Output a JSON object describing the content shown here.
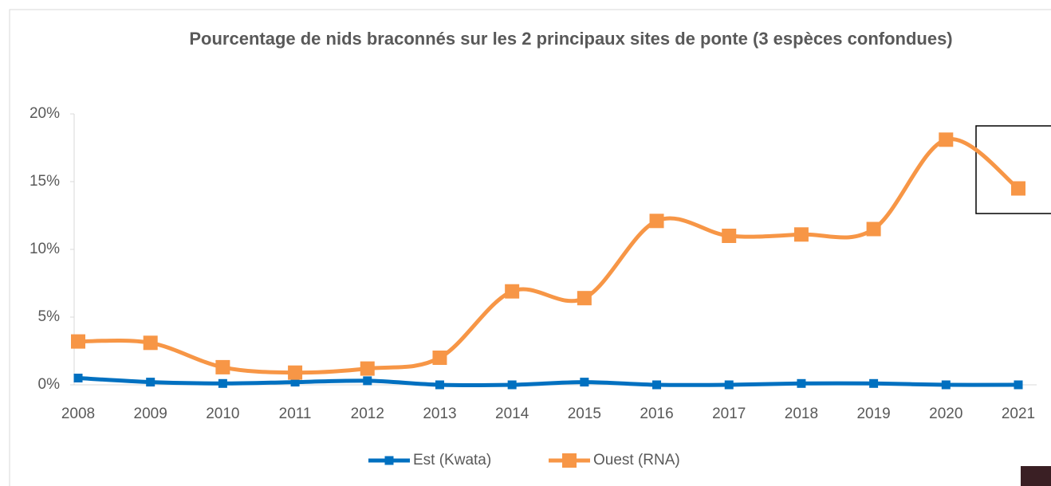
{
  "chart_data": {
    "type": "line",
    "title": "Pourcentage de nids braconnés sur les 2 principaux sites de ponte (3 espèces confondues)",
    "categories": [
      "2008",
      "2009",
      "2010",
      "2011",
      "2012",
      "2013",
      "2014",
      "2015",
      "2016",
      "2017",
      "2018",
      "2019",
      "2020",
      "2021"
    ],
    "series": [
      {
        "name": "Est (Kwata)",
        "color": "#0070c0",
        "values": [
          0.5,
          0.2,
          0.1,
          0.2,
          0.3,
          0.0,
          0.0,
          0.2,
          0.0,
          0.0,
          0.1,
          0.1,
          0.0,
          0.0
        ]
      },
      {
        "name": "Ouest (RNA)",
        "color": "#f79646",
        "values": [
          3.2,
          3.1,
          1.3,
          0.9,
          1.2,
          2.0,
          6.9,
          6.4,
          12.1,
          11.0,
          11.1,
          11.5,
          18.1,
          14.5
        ]
      }
    ],
    "ylim": [
      0,
      20
    ],
    "yticks": [
      {
        "value": 0,
        "label": "0%"
      },
      {
        "value": 5,
        "label": "5%"
      },
      {
        "value": 10,
        "label": "10%"
      },
      {
        "value": 15,
        "label": "15%"
      },
      {
        "value": 20,
        "label": "20%"
      }
    ],
    "smooth": true,
    "legend": "bottom"
  }
}
